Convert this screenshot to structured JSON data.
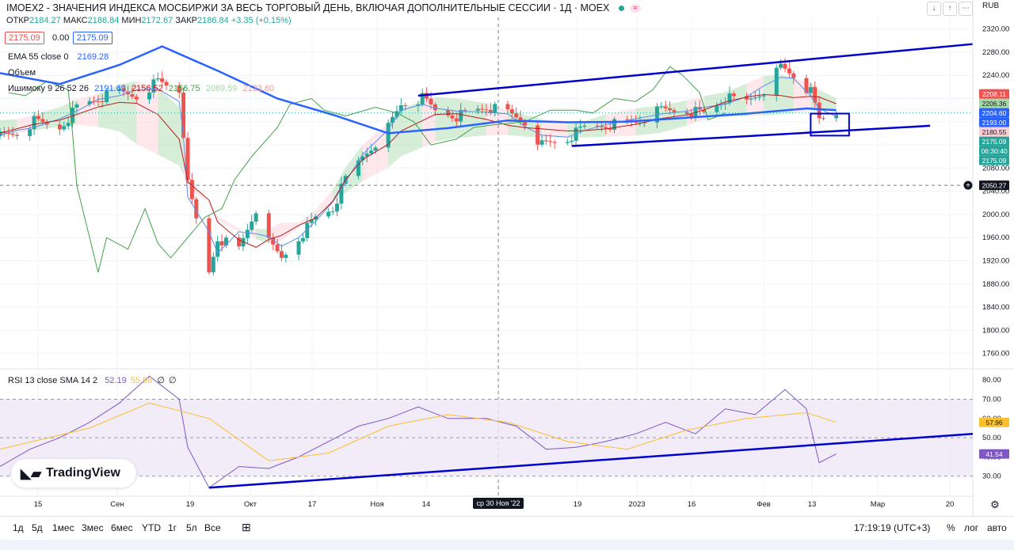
{
  "header": {
    "title": "IMOEX2 - ЗНАЧЕНИЯ ИНДЕКСА МОСБИРЖИ ЗА ВЕСЬ ТОРГОВЫЙ ДЕНЬ, ВКЛЮЧАЯ ДОПОЛНИТЕЛЬНЫЕ СЕССИИ · 1Д · MOEX",
    "ohlc": {
      "open_label": "ОТКР",
      "open": "2184.27",
      "high_label": "МАКС",
      "high": "2186.84",
      "low_label": "МИН",
      "low": "2172.67",
      "close_label": "ЗАКР",
      "close": "2186.84",
      "change": "+3.35 (+0.15%)"
    },
    "price_red": "2175.09",
    "price_mid": "0.00",
    "price_blue": "2175.09",
    "currency": "RUB",
    "badge": "≈"
  },
  "legends": {
    "ema": {
      "label": "EMA 55 close 0",
      "value": "2169.28"
    },
    "volume": {
      "label": "Объем"
    },
    "ichimoku": {
      "label": "Ишимоку 9 26 52 26",
      "v1": "2191.69",
      "v2": "2156.52",
      "v3": "2156.75",
      "v4": "2069.59",
      "v5": "2133.60"
    },
    "rsi": {
      "label": "RSI 13 close SMA 14 2",
      "v1": "52.19",
      "v2": "55.98",
      "v3": "∅",
      "v4": "∅"
    }
  },
  "colors": {
    "up": "#26a69a",
    "down": "#ef5350",
    "ema": "#2962ff",
    "trend": "#0000cc",
    "cloud_green": "#a5d6a7",
    "cloud_red": "#ffcdd2",
    "rsi": "#7e57c2",
    "rsi_sma": "#fbc02d",
    "rsi_band": "#ede7f6"
  },
  "price_axis": {
    "ticks": [
      "2320.00",
      "2280.00",
      "2240.00",
      "2200.00",
      "2160.00",
      "2120.00",
      "2080.00",
      "2040.00",
      "2000.00",
      "1960.00",
      "1920.00",
      "1880.00",
      "1840.00",
      "1800.00",
      "1760.00"
    ],
    "tick_values": [
      2320,
      2280,
      2240,
      2200,
      2160,
      2120,
      2080,
      2040,
      2000,
      1960,
      1920,
      1880,
      1840,
      1800,
      1760
    ],
    "labels": [
      {
        "text": "2208.11",
        "value": 2208.11,
        "bg": "#ef5350",
        "fg": "#ffffff"
      },
      {
        "text": "2206.36",
        "value": 2206.36,
        "bg": "#a5d6a7",
        "fg": "#131722"
      },
      {
        "text": "2204.60",
        "value": 2204.6,
        "bg": "#2962ff",
        "fg": "#ffffff"
      },
      {
        "text": "2193.00",
        "value": 2193.0,
        "bg": "#2962ff",
        "fg": "#ffffff"
      },
      {
        "text": "2180.55",
        "value": 2180.55,
        "bg": "#ffcdd2",
        "fg": "#131722"
      },
      {
        "text": "2175.09",
        "value": 2175.09,
        "bg": "#26a69a",
        "fg": "#ffffff"
      },
      {
        "text": "06:30:40",
        "value": 2168.5,
        "bg": "#26a69a",
        "fg": "#ffffff"
      },
      {
        "text": "2175.09",
        "value": 2162.5,
        "bg": "#26a69a",
        "fg": "#ffffff"
      },
      {
        "text": "2050.27",
        "value": 2050.27,
        "bg": "#131722",
        "fg": "#ffffff"
      }
    ]
  },
  "rsi_axis": {
    "ticks": [
      "80.00",
      "70.00",
      "60.00",
      "50.00",
      "40.00",
      "30.00"
    ],
    "tick_values": [
      80,
      70,
      60,
      50,
      40,
      30
    ],
    "labels": [
      {
        "text": "57.96",
        "value": 57.96,
        "bg": "#fbc02d",
        "fg": "#131722"
      },
      {
        "text": "41.54",
        "value": 41.54,
        "bg": "#7e57c2",
        "fg": "#ffffff"
      }
    ]
  },
  "time_axis": {
    "ticks": [
      "15",
      "Сен",
      "19",
      "Окт",
      "17",
      "Ноя",
      "14",
      "ср 30 Ноя '22",
      "19",
      "2023",
      "16",
      "Фев",
      "13",
      "Мар",
      "20"
    ],
    "ticks_x": [
      48,
      148,
      240,
      316,
      394,
      476,
      538,
      629,
      729,
      804,
      873,
      964,
      1025,
      1108,
      1199
    ]
  },
  "chart_data": {
    "type": "candlestick",
    "title": "IMOEX2 - ЗНАЧЕНИЯ ИНДЕКСА МОСБИРЖИ ЗА ВЕСЬ ТОРГОВЫЙ ДЕНЬ, ВКЛЮЧАЯ ДОПОЛНИТЕЛЬНЫЕ СЕССИИ · 1Д · MOEX",
    "period": "1Д",
    "x_range": [
      "2022-08-08",
      "2023-03-24"
    ],
    "x_labels": [
      "15",
      "Сен",
      "19",
      "Окт",
      "17",
      "Ноя",
      "14",
      "ср 30 Ноя '22",
      "19",
      "2023",
      "16",
      "Фев",
      "13",
      "Мар",
      "20"
    ],
    "ylim": [
      1735,
      2340
    ],
    "close_path": [
      [
        "2022-08-08",
        2135
      ],
      [
        "2022-08-12",
        2140
      ],
      [
        "2022-08-16",
        2160
      ],
      [
        "2022-08-22",
        2150
      ],
      [
        "2022-08-26",
        2185
      ],
      [
        "2022-08-31",
        2200
      ],
      [
        "2022-09-05",
        2210
      ],
      [
        "2022-09-09",
        2205
      ],
      [
        "2022-09-14",
        2230
      ],
      [
        "2022-09-19",
        2215
      ],
      [
        "2022-09-20",
        2140
      ],
      [
        "2022-09-21",
        2050
      ],
      [
        "2022-09-26",
        1900
      ],
      [
        "2022-09-28",
        1960
      ],
      [
        "2022-10-03",
        1940
      ],
      [
        "2022-10-07",
        2010
      ],
      [
        "2022-10-10",
        1950
      ],
      [
        "2022-10-13",
        1925
      ],
      [
        "2022-10-17",
        1960
      ],
      [
        "2022-10-21",
        1995
      ],
      [
        "2022-10-25",
        2010
      ],
      [
        "2022-10-28",
        2060
      ],
      [
        "2022-11-01",
        2100
      ],
      [
        "2022-11-07",
        2150
      ],
      [
        "2022-11-10",
        2190
      ],
      [
        "2022-11-15",
        2200
      ],
      [
        "2022-11-18",
        2180
      ],
      [
        "2022-11-23",
        2170
      ],
      [
        "2022-11-30",
        2185
      ],
      [
        "2022-12-05",
        2175
      ],
      [
        "2022-12-09",
        2160
      ],
      [
        "2022-12-13",
        2120
      ],
      [
        "2022-12-19",
        2130
      ],
      [
        "2022-12-23",
        2150
      ],
      [
        "2022-12-28",
        2155
      ],
      [
        "2023-01-04",
        2160
      ],
      [
        "2023-01-10",
        2180
      ],
      [
        "2023-01-16",
        2180
      ],
      [
        "2023-01-20",
        2175
      ],
      [
        "2023-01-25",
        2200
      ],
      [
        "2023-01-30",
        2195
      ],
      [
        "2023-02-03",
        2215
      ],
      [
        "2023-02-07",
        2255
      ],
      [
        "2023-02-10",
        2240
      ],
      [
        "2023-02-14",
        2210
      ],
      [
        "2023-02-16",
        2163
      ],
      [
        "2023-02-20",
        2175
      ]
    ],
    "ema55": [
      [
        "2022-08-08",
        2244
      ],
      [
        "2022-08-22",
        2225
      ],
      [
        "2022-09-05",
        2258
      ],
      [
        "2022-09-15",
        2290
      ],
      [
        "2022-09-28",
        2248
      ],
      [
        "2022-10-12",
        2200
      ],
      [
        "2022-10-25",
        2172
      ],
      [
        "2022-11-07",
        2140
      ],
      [
        "2022-11-21",
        2149
      ],
      [
        "2022-12-05",
        2162
      ],
      [
        "2022-12-19",
        2159
      ],
      [
        "2023-01-02",
        2160
      ],
      [
        "2023-01-16",
        2167
      ],
      [
        "2023-01-30",
        2174
      ],
      [
        "2023-02-13",
        2183
      ],
      [
        "2023-02-20",
        2180
      ]
    ],
    "trendlines": [
      {
        "name": "upper",
        "from": [
          "2022-11-14",
          2205
        ],
        "to": [
          "2023-03-24",
          2294
        ]
      },
      {
        "name": "lower",
        "from": [
          "2022-12-20",
          2118
        ],
        "to": [
          "2023-03-14",
          2153
        ]
      }
    ],
    "highlight_box": {
      "x": [
        "2023-02-14",
        "2023-02-23"
      ],
      "y": [
        2136,
        2174
      ]
    },
    "rsi": {
      "ylim": [
        20,
        85
      ],
      "bands": [
        30,
        70
      ],
      "series": [
        [
          "2022-08-08",
          35
        ],
        [
          "2022-08-15",
          44
        ],
        [
          "2022-08-22",
          50
        ],
        [
          "2022-08-29",
          58
        ],
        [
          "2022-09-05",
          68
        ],
        [
          "2022-09-12",
          82
        ],
        [
          "2022-09-19",
          70
        ],
        [
          "2022-09-21",
          45
        ],
        [
          "2022-09-26",
          24
        ],
        [
          "2022-10-03",
          35
        ],
        [
          "2022-10-10",
          34
        ],
        [
          "2022-10-17",
          40
        ],
        [
          "2022-10-24",
          48
        ],
        [
          "2022-10-31",
          56
        ],
        [
          "2022-11-07",
          60
        ],
        [
          "2022-11-14",
          66
        ],
        [
          "2022-11-21",
          60
        ],
        [
          "2022-11-30",
          60
        ],
        [
          "2022-12-07",
          56
        ],
        [
          "2022-12-14",
          44
        ],
        [
          "2022-12-21",
          45
        ],
        [
          "2022-12-28",
          48
        ],
        [
          "2023-01-04",
          52
        ],
        [
          "2023-01-11",
          58
        ],
        [
          "2023-01-18",
          52
        ],
        [
          "2023-01-25",
          65
        ],
        [
          "2023-02-01",
          62
        ],
        [
          "2023-02-08",
          75
        ],
        [
          "2023-02-13",
          65
        ],
        [
          "2023-02-16",
          37
        ],
        [
          "2023-02-20",
          41.54
        ]
      ],
      "sma": [
        [
          "2022-08-08",
          44
        ],
        [
          "2022-08-29",
          55
        ],
        [
          "2022-09-12",
          68
        ],
        [
          "2022-09-26",
          60
        ],
        [
          "2022-10-10",
          38
        ],
        [
          "2022-10-24",
          42
        ],
        [
          "2022-11-07",
          56
        ],
        [
          "2022-11-21",
          62
        ],
        [
          "2022-12-05",
          58
        ],
        [
          "2022-12-19",
          48
        ],
        [
          "2023-01-02",
          44
        ],
        [
          "2023-01-16",
          54
        ],
        [
          "2023-01-30",
          60
        ],
        [
          "2023-02-13",
          63
        ],
        [
          "2023-02-20",
          57.96
        ]
      ],
      "trendline": {
        "from": [
          "2022-09-26",
          24
        ],
        "to": [
          "2023-03-24",
          52
        ]
      }
    }
  },
  "toolbar": {
    "timeframes": [
      "1д",
      "5д",
      "1мес",
      "3мес",
      "6мес",
      "YTD",
      "1г",
      "5л",
      "Все"
    ],
    "clock": "17:19:19 (UTC+3)",
    "percent": "%",
    "log": "лог",
    "auto": "авто"
  },
  "branding": {
    "logo_text": "TradingView"
  }
}
